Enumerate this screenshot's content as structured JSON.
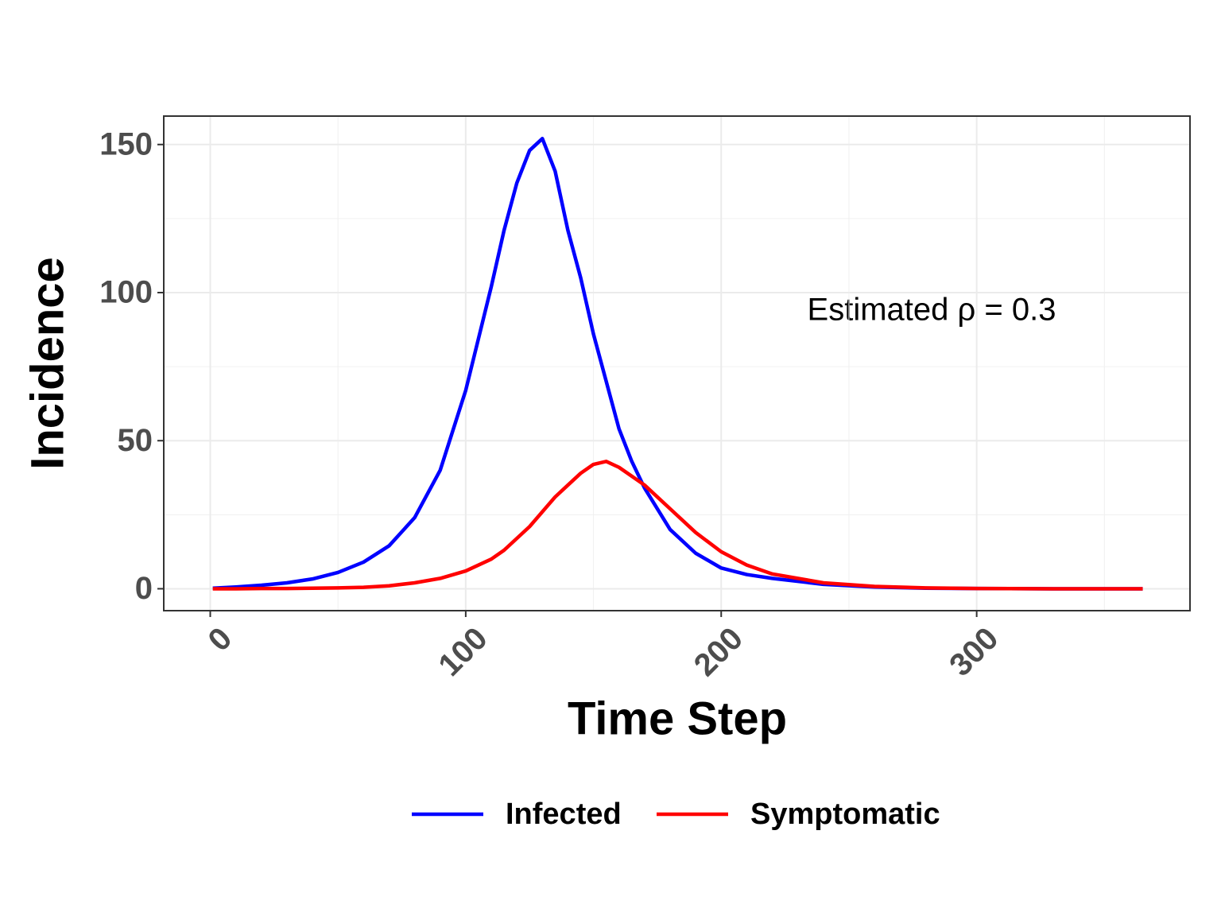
{
  "chart_data": {
    "type": "line",
    "x_label": "Time Step",
    "y_label": "Incidence",
    "annotation": "Estimated ρ = 0.3",
    "x": [
      1,
      10,
      20,
      30,
      40,
      50,
      60,
      70,
      80,
      90,
      100,
      110,
      115,
      120,
      125,
      130,
      135,
      140,
      145,
      150,
      155,
      160,
      165,
      170,
      180,
      190,
      200,
      210,
      220,
      240,
      260,
      280,
      300,
      330,
      365
    ],
    "series": [
      {
        "name": "Infected",
        "color": "#0000ff",
        "values": [
          0.2,
          0.6,
          1.2,
          2,
          3.3,
          5.5,
          9,
          14.5,
          24,
          40,
          67,
          102,
          121,
          137,
          148,
          152,
          141,
          121,
          105,
          86,
          70,
          54,
          43,
          34,
          20,
          12,
          7,
          4.8,
          3.5,
          1.5,
          0.6,
          0.2,
          0.1,
          0,
          0
        ]
      },
      {
        "name": "Symptomatic",
        "color": "#ff0000",
        "values": [
          0,
          0,
          0.1,
          0.1,
          0.2,
          0.3,
          0.5,
          1,
          2,
          3.5,
          6,
          10,
          13,
          17,
          21,
          26,
          31,
          35,
          39,
          42,
          43,
          41,
          38,
          35,
          27,
          19,
          12.5,
          8,
          5,
          2,
          0.8,
          0.3,
          0.1,
          0,
          0
        ]
      }
    ],
    "xlim": [
      -18.2,
      383.5
    ],
    "ylim": [
      -7.4,
      159.6
    ],
    "xticks": [
      0,
      100,
      200,
      300
    ],
    "yticks": [
      0,
      50,
      100,
      150
    ],
    "minor_xticks": [
      50,
      150,
      250,
      350
    ],
    "minor_yticks": [
      25,
      75,
      125
    ],
    "grid": true,
    "legend": "bottom"
  }
}
